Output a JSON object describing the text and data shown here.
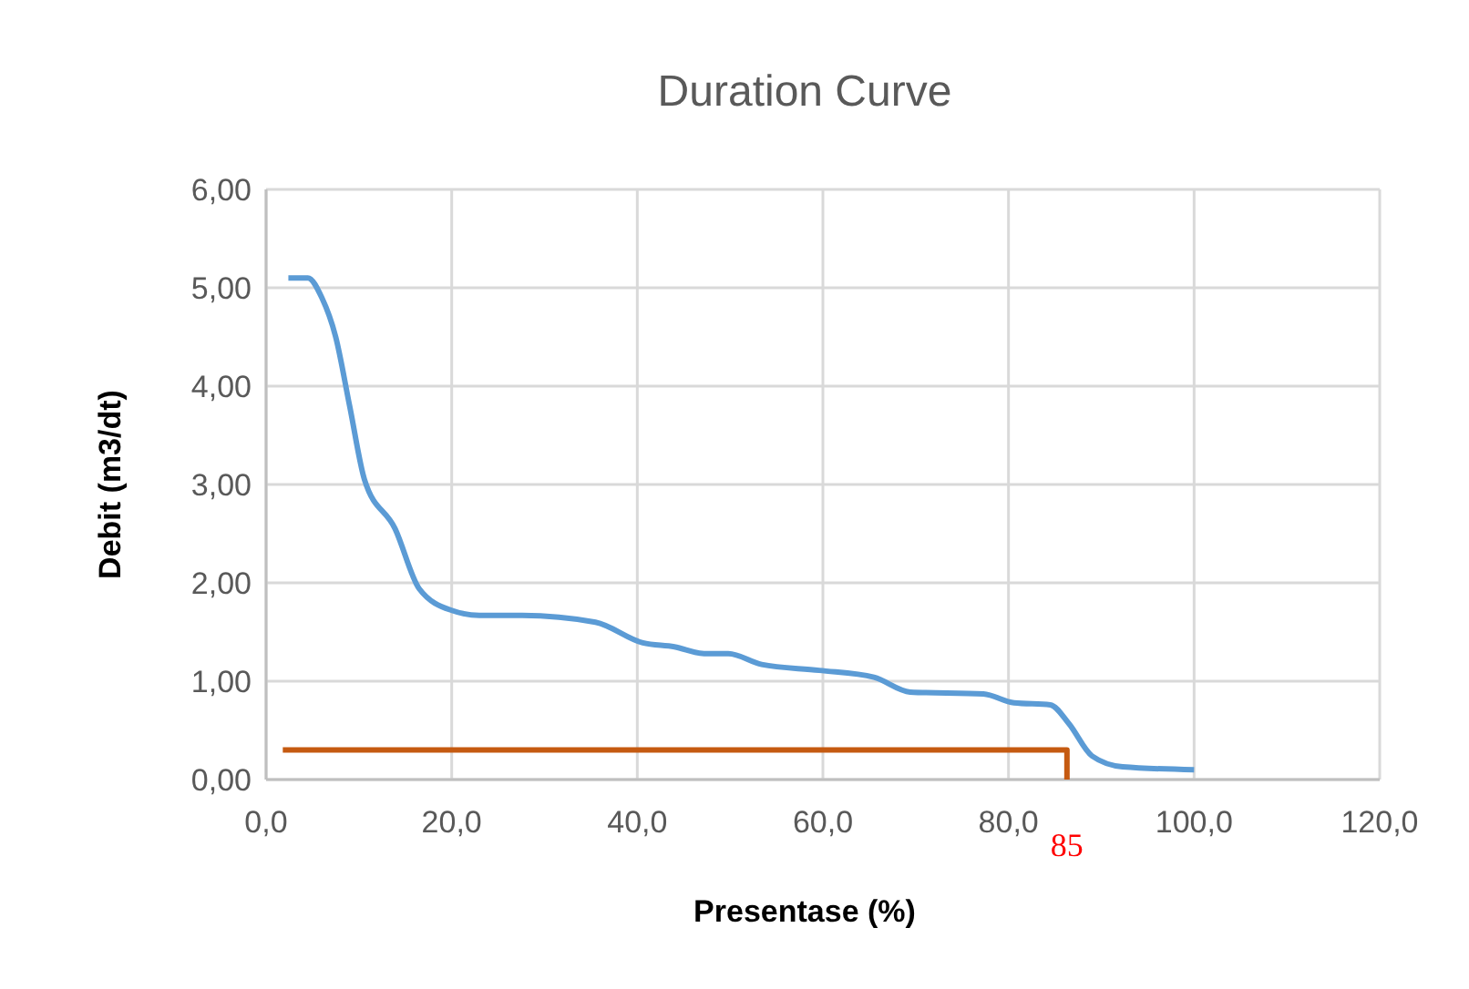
{
  "chart_data": {
    "type": "line",
    "title": "Duration Curve",
    "xlabel": "Presentase (%)",
    "ylabel": "Debit (m3/dt)",
    "xlim": [
      0,
      120
    ],
    "xticks": [
      {
        "value": 0,
        "label": "0,0"
      },
      {
        "value": 20,
        "label": "20,0"
      },
      {
        "value": 40,
        "label": "40,0"
      },
      {
        "value": 60,
        "label": "60,0"
      },
      {
        "value": 80,
        "label": "80,0"
      },
      {
        "value": 100,
        "label": "100,0"
      },
      {
        "value": 120,
        "label": "120,0"
      }
    ],
    "ylim": [
      0,
      6
    ],
    "yticks": [
      {
        "value": 0,
        "label": "0,00"
      },
      {
        "value": 1,
        "label": "1,00"
      },
      {
        "value": 2,
        "label": "2,00"
      },
      {
        "value": 3,
        "label": "3,00"
      },
      {
        "value": 4,
        "label": "4,00"
      },
      {
        "value": 5,
        "label": "5,00"
      },
      {
        "value": 6,
        "label": "6,00"
      }
    ],
    "grid": true,
    "line_style": "solid",
    "marker": "none",
    "series": [
      {
        "color": "#5b9bd5",
        "x": [
          2.4,
          4.5,
          6,
          7.5,
          9,
          10.6,
          13.9,
          16.5,
          20,
          23,
          27.6,
          35.5,
          40.6,
          44,
          47.2,
          49.8,
          53.4,
          59.6,
          65.5,
          69.4,
          77.3,
          80.6,
          84.5,
          86.5,
          89,
          92.3,
          100
        ],
        "values": [
          5.1,
          5.1,
          4.9,
          4.5,
          3.8,
          3.05,
          2.55,
          1.94,
          1.72,
          1.67,
          1.67,
          1.6,
          1.39,
          1.35,
          1.28,
          1.28,
          1.17,
          1.11,
          1.04,
          0.89,
          0.87,
          0.78,
          0.76,
          0.57,
          0.24,
          0.13,
          0.1
        ]
      },
      {
        "color": "#c55a11",
        "x": [
          1.8,
          86.3,
          86.3
        ],
        "values": [
          0.3,
          0.3,
          0
        ]
      }
    ],
    "annotations": [
      {
        "text": "85",
        "x": 86.3,
        "y": 0
      }
    ]
  }
}
